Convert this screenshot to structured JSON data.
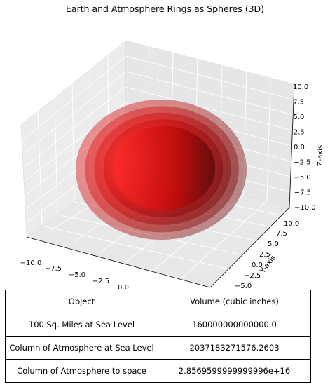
{
  "chart_data": {
    "type": "3d-surface",
    "title": "Earth and Atmosphere Rings as Spheres (3D)",
    "xlabel": "",
    "ylabel": "Y-axis",
    "zlabel": "Z-axis",
    "xlim": [
      -10,
      10
    ],
    "ylim": [
      -10,
      10
    ],
    "zlim": [
      -10,
      10
    ],
    "x_ticks": [
      "−10.0",
      "−7.5",
      "−5.0",
      "−2.5",
      "0.0"
    ],
    "y_ticks": [
      "−5.0",
      "−2.5",
      "0.0",
      "2.5",
      "5.0",
      "7.5",
      "10.0"
    ],
    "z_ticks": [
      "−10.0",
      "−7.5",
      "−5.0",
      "−2.5",
      "0.0",
      "2.5",
      "5.0",
      "7.5",
      "10.0"
    ],
    "grid": true,
    "spheres": [
      {
        "radius": 10,
        "color": "#d02020",
        "alpha": 0.45
      },
      {
        "radius": 9,
        "color": "#d41c1c",
        "alpha": 0.45
      },
      {
        "radius": 8,
        "color": "#d81818",
        "alpha": 0.5
      },
      {
        "radius": 7,
        "color": "#c81010",
        "alpha": 0.6
      },
      {
        "radius": 6,
        "color": "#b80808",
        "alpha": 0.85
      }
    ]
  },
  "table": {
    "headers": [
      "Object",
      "Volume (cubic inches)"
    ],
    "rows": [
      [
        "100 Sq. Miles at Sea Level",
        "160000000000000.0"
      ],
      [
        "Column of Atmosphere at Sea Level",
        "2037183271576.2603"
      ],
      [
        "Column of Atmosphere to space",
        "2.8569599999999996e+16"
      ]
    ]
  }
}
